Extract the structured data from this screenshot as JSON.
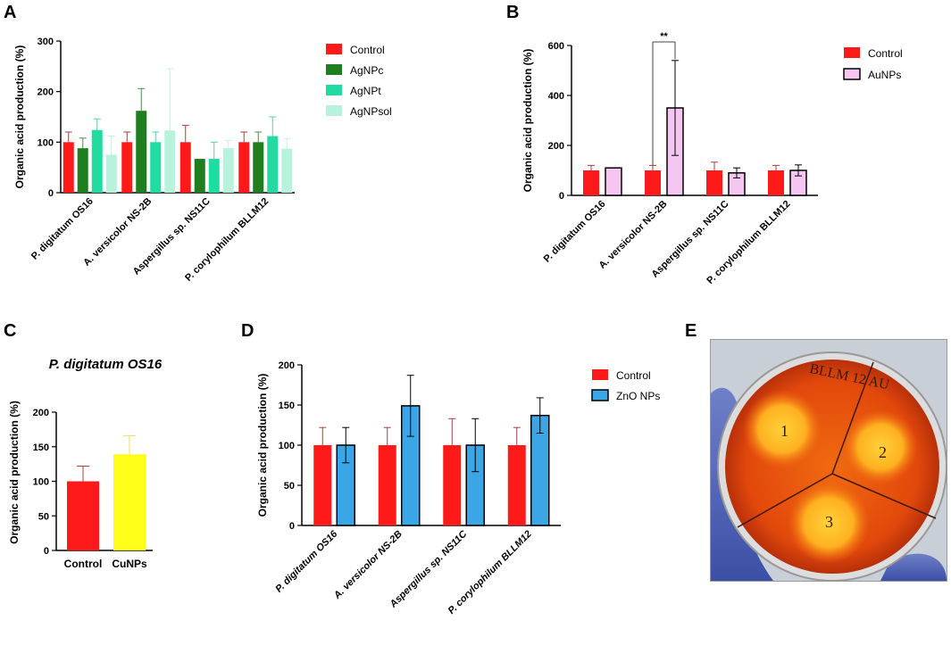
{
  "panels": {
    "A": "A",
    "B": "B",
    "C": "C",
    "D": "D",
    "E": "E"
  },
  "plate_photo": {
    "labels": [
      "BLLM 12 AU",
      "1",
      "2",
      "3"
    ]
  },
  "colors": {
    "control": "#ff1a1a",
    "agnpc": "#1f7f1f",
    "agnpt": "#22dba0",
    "agnpsol": "#b6f2dc",
    "aunps": "#f6c6f2",
    "cunps": "#ffff1a",
    "znonps": "#3aa6e6",
    "error_control": "#a04040"
  },
  "chart_data": [
    {
      "id": "A",
      "type": "bar",
      "ylabel": "Organic acid production (%)",
      "ylim": [
        0,
        300
      ],
      "yticks": [
        0,
        100,
        200,
        300
      ],
      "categories": [
        "P. digitatum OS16",
        "A. versicolor NS-2B",
        "Aspergillus sp. NS11C",
        "P. corylophilum BLLM12"
      ],
      "series": [
        {
          "name": "Control",
          "values": [
            100,
            100,
            100,
            100
          ],
          "errors": [
            20,
            20,
            33,
            20
          ]
        },
        {
          "name": "AgNPc",
          "values": [
            88,
            162,
            67,
            100
          ],
          "errors": [
            20,
            44,
            0,
            20
          ]
        },
        {
          "name": "AgNPt",
          "values": [
            124,
            100,
            67,
            112
          ],
          "errors": [
            22,
            20,
            33,
            38
          ]
        },
        {
          "name": "AgNPsol",
          "values": [
            75,
            123,
            88,
            87
          ],
          "errors": [
            37,
            122,
            15,
            20
          ]
        }
      ],
      "legend": "right"
    },
    {
      "id": "B",
      "type": "bar",
      "ylabel": "Organic acid production (%)",
      "ylim": [
        0,
        600
      ],
      "yticks": [
        0,
        200,
        400,
        600
      ],
      "categories": [
        "P. digitatum OS16",
        "A. versicolor NS-2B",
        "Aspergillus sp. NS11C",
        "P. corylophilum BLLM12"
      ],
      "series": [
        {
          "name": "Control",
          "values": [
            100,
            100,
            100,
            100
          ],
          "errors": [
            20,
            20,
            33,
            20
          ]
        },
        {
          "name": "AuNPs",
          "values": [
            110,
            350,
            90,
            100
          ],
          "errors": [
            0,
            190,
            20,
            22
          ]
        }
      ],
      "annotation": "**",
      "legend": "right"
    },
    {
      "id": "C",
      "type": "bar",
      "title": "P. digitatum OS16",
      "ylabel": "Organic acid production (%)",
      "ylim": [
        0,
        200
      ],
      "yticks": [
        0,
        50,
        100,
        150,
        200
      ],
      "categories": [
        "Control",
        "CuNPs"
      ],
      "values": [
        100,
        139
      ],
      "errors": [
        22,
        27
      ]
    },
    {
      "id": "D",
      "type": "bar",
      "ylabel": "Organic acid production (%)",
      "ylim": [
        0,
        200
      ],
      "yticks": [
        0,
        50,
        100,
        150,
        200
      ],
      "categories": [
        "P. digitatum OS16",
        "A. versicolor NS-2B",
        "Aspergillus sp. NS11C",
        "P. corylophilum BLLM12"
      ],
      "series": [
        {
          "name": "Control",
          "values": [
            100,
            100,
            100,
            100
          ],
          "errors": [
            22,
            22,
            33,
            22
          ]
        },
        {
          "name": "ZnO NPs",
          "values": [
            100,
            149,
            100,
            137
          ],
          "errors": [
            22,
            38,
            33,
            22
          ]
        }
      ],
      "legend": "right"
    }
  ]
}
